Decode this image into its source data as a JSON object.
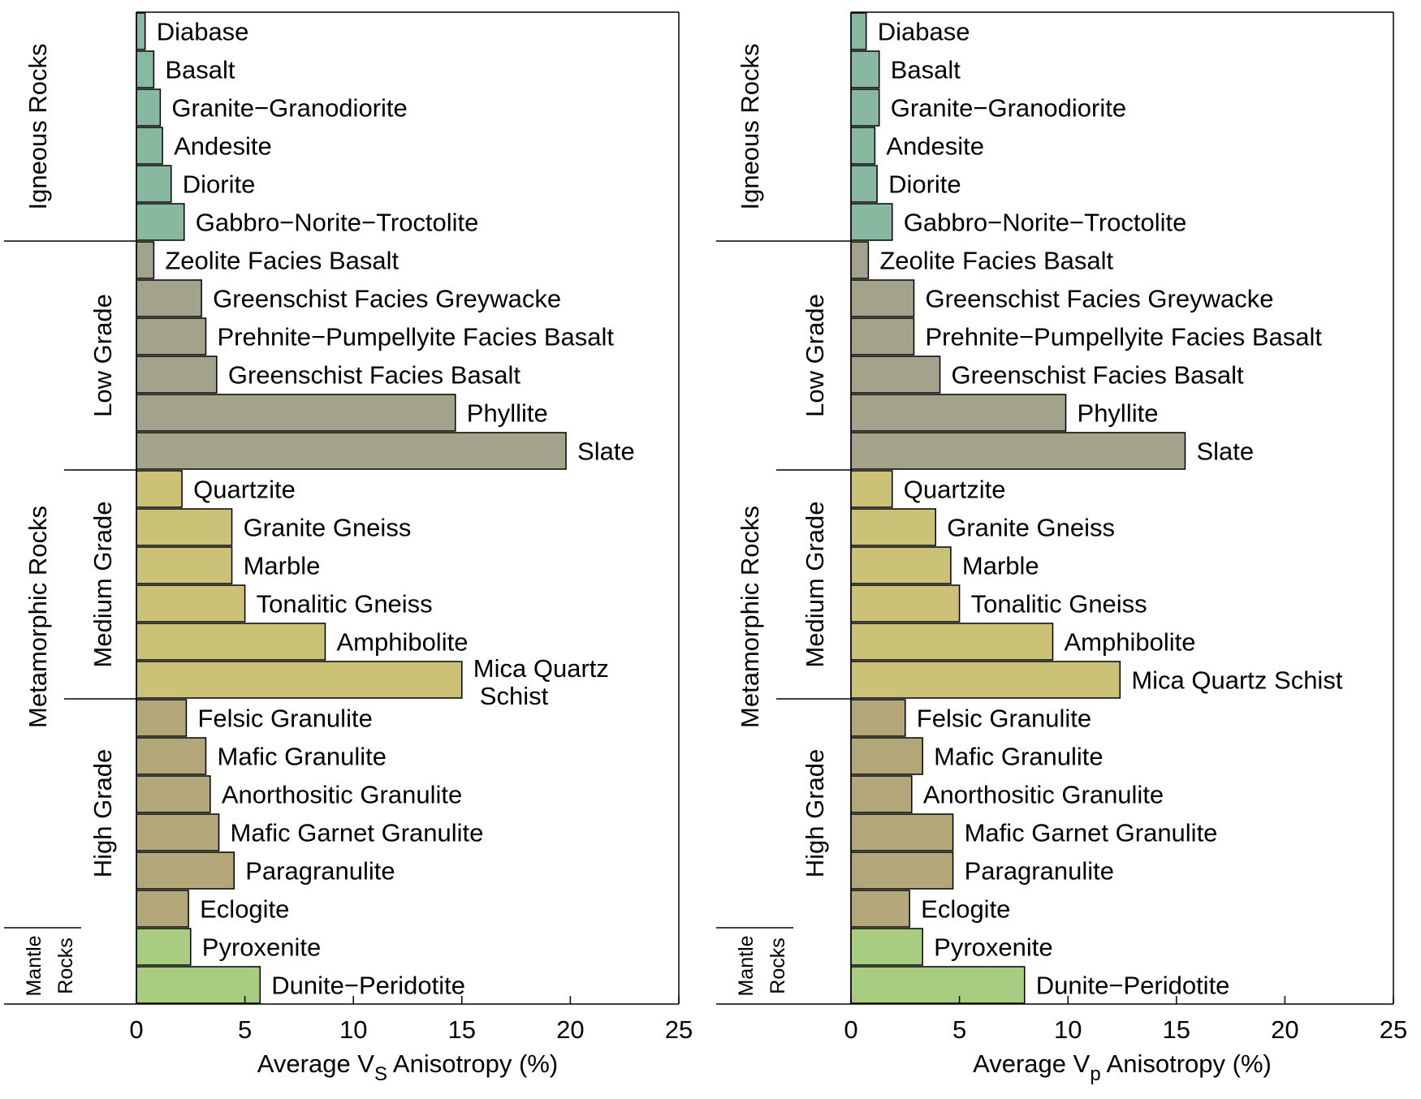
{
  "chart_data": [
    {
      "type": "bar",
      "orientation": "horizontal",
      "xlabel": "Average V",
      "xlabel_sub": "S",
      "xlabel_suffix": " Anisotropy (%)",
      "xlim": [
        0,
        25
      ],
      "xticks": [
        0,
        5,
        10,
        15,
        20,
        25
      ],
      "grid": false,
      "groups": [
        {
          "label": "Igneous Rocks"
        },
        {
          "label": "Metamorphic Rocks"
        },
        {
          "label_1": "Mantle",
          "label_2": "Rocks"
        }
      ],
      "subgroups": [
        {
          "label": "Low Grade"
        },
        {
          "label": "Medium Grade"
        },
        {
          "label": "High Grade"
        }
      ],
      "categories": [
        {
          "label": "Diabase",
          "value": 0.4,
          "color": "#88b8a0"
        },
        {
          "label": "Basalt",
          "value": 0.8,
          "color": "#88b8a0"
        },
        {
          "label": "Granite−Granodiorite",
          "value": 1.1,
          "color": "#88b8a0"
        },
        {
          "label": "Andesite",
          "value": 1.2,
          "color": "#88b8a0"
        },
        {
          "label": "Diorite",
          "value": 1.6,
          "color": "#88b8a0"
        },
        {
          "label": "Gabbro−Norite−Troctolite",
          "value": 2.2,
          "color": "#88b8a0"
        },
        {
          "label": "Zeolite Facies Basalt",
          "value": 0.8,
          "color": "#a3a38b"
        },
        {
          "label": "Greenschist Facies Greywacke",
          "value": 3.0,
          "color": "#a3a38b"
        },
        {
          "label": "Prehnite−Pumpellyite Facies Basalt",
          "value": 3.2,
          "color": "#a3a38b"
        },
        {
          "label": "Greenschist Facies Basalt",
          "value": 3.7,
          "color": "#a3a38b"
        },
        {
          "label": "Phyllite",
          "value": 14.7,
          "color": "#a3a38b"
        },
        {
          "label": "Slate",
          "value": 19.8,
          "color": "#a3a38b"
        },
        {
          "label": "Quartzite",
          "value": 2.1,
          "color": "#cbc177"
        },
        {
          "label": "Granite Gneiss",
          "value": 4.4,
          "color": "#cbc177"
        },
        {
          "label": "Marble",
          "value": 4.4,
          "color": "#cbc177"
        },
        {
          "label": "Tonalitic Gneiss",
          "value": 5.0,
          "color": "#cbc177"
        },
        {
          "label": "Amphibolite",
          "value": 8.7,
          "color": "#cbc177"
        },
        {
          "label": "Mica Quartz\nSchist",
          "value": 15.0,
          "color": "#cbc177"
        },
        {
          "label": "Felsic Granulite",
          "value": 2.3,
          "color": "#b3a678"
        },
        {
          "label": "Mafic Granulite",
          "value": 3.2,
          "color": "#b3a678"
        },
        {
          "label": "Anorthositic Granulite",
          "value": 3.4,
          "color": "#b3a678"
        },
        {
          "label": "Mafic Garnet Granulite",
          "value": 3.8,
          "color": "#b3a678"
        },
        {
          "label": "Paragranulite",
          "value": 4.5,
          "color": "#b3a678"
        },
        {
          "label": "Eclogite",
          "value": 2.4,
          "color": "#b3a678"
        },
        {
          "label": "Pyroxenite",
          "value": 2.5,
          "color": "#a8cc80"
        },
        {
          "label": "Dunite−Peridotite",
          "value": 5.7,
          "color": "#a8cc80"
        }
      ]
    },
    {
      "type": "bar",
      "orientation": "horizontal",
      "xlabel": "Average V",
      "xlabel_sub": "p",
      "xlabel_suffix": " Anisotropy (%)",
      "xlim": [
        0,
        25
      ],
      "xticks": [
        0,
        5,
        10,
        15,
        20,
        25
      ],
      "grid": false,
      "groups": [
        {
          "label": "Igneous Rocks"
        },
        {
          "label": "Metamorphic Rocks"
        },
        {
          "label_1": "Mantle",
          "label_2": "Rocks"
        }
      ],
      "subgroups": [
        {
          "label": "Low Grade"
        },
        {
          "label": "Medium Grade"
        },
        {
          "label": "High Grade"
        }
      ],
      "categories": [
        {
          "label": "Diabase",
          "value": 0.7,
          "color": "#88b8a0"
        },
        {
          "label": "Basalt",
          "value": 1.3,
          "color": "#88b8a0"
        },
        {
          "label": "Granite−Granodiorite",
          "value": 1.3,
          "color": "#88b8a0"
        },
        {
          "label": "Andesite",
          "value": 1.1,
          "color": "#88b8a0"
        },
        {
          "label": "Diorite",
          "value": 1.2,
          "color": "#88b8a0"
        },
        {
          "label": "Gabbro−Norite−Troctolite",
          "value": 1.9,
          "color": "#88b8a0"
        },
        {
          "label": "Zeolite Facies Basalt",
          "value": 0.8,
          "color": "#a3a38b"
        },
        {
          "label": "Greenschist Facies Greywacke",
          "value": 2.9,
          "color": "#a3a38b"
        },
        {
          "label": "Prehnite−Pumpellyite Facies Basalt",
          "value": 2.9,
          "color": "#a3a38b"
        },
        {
          "label": "Greenschist Facies Basalt",
          "value": 4.1,
          "color": "#a3a38b"
        },
        {
          "label": "Phyllite",
          "value": 9.9,
          "color": "#a3a38b"
        },
        {
          "label": "Slate",
          "value": 15.4,
          "color": "#a3a38b"
        },
        {
          "label": "Quartzite",
          "value": 1.9,
          "color": "#cbc177"
        },
        {
          "label": "Granite Gneiss",
          "value": 3.9,
          "color": "#cbc177"
        },
        {
          "label": "Marble",
          "value": 4.6,
          "color": "#cbc177"
        },
        {
          "label": "Tonalitic Gneiss",
          "value": 5.0,
          "color": "#cbc177"
        },
        {
          "label": "Amphibolite",
          "value": 9.3,
          "color": "#cbc177"
        },
        {
          "label": "Mica Quartz Schist",
          "value": 12.4,
          "color": "#cbc177"
        },
        {
          "label": "Felsic Granulite",
          "value": 2.5,
          "color": "#b3a678"
        },
        {
          "label": "Mafic Granulite",
          "value": 3.3,
          "color": "#b3a678"
        },
        {
          "label": "Anorthositic Granulite",
          "value": 2.8,
          "color": "#b3a678"
        },
        {
          "label": "Mafic Garnet Granulite",
          "value": 4.7,
          "color": "#b3a678"
        },
        {
          "label": "Paragranulite",
          "value": 4.7,
          "color": "#b3a678"
        },
        {
          "label": "Eclogite",
          "value": 2.7,
          "color": "#b3a678"
        },
        {
          "label": "Pyroxenite",
          "value": 3.3,
          "color": "#a8cc80"
        },
        {
          "label": "Dunite−Peridotite",
          "value": 8.0,
          "color": "#a8cc80"
        }
      ]
    }
  ]
}
